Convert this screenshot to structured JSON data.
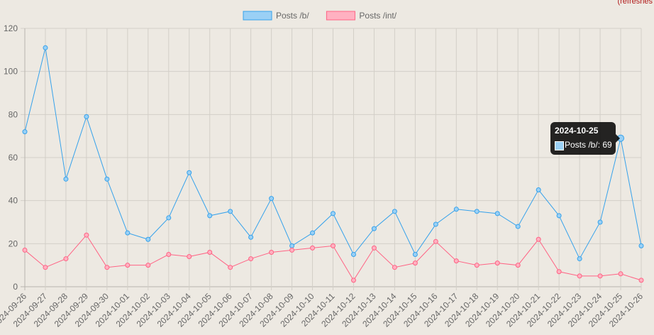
{
  "header": {
    "refresh_note": "(refreshes"
  },
  "chart_data": {
    "type": "line",
    "title": "",
    "xlabel": "",
    "ylabel": "",
    "ylim": [
      0,
      120
    ],
    "yticks": [
      0,
      20,
      40,
      60,
      80,
      100,
      120
    ],
    "grid": true,
    "legend_position": "top",
    "categories": [
      "2024-09-26",
      "2024-09-27",
      "2024-09-28",
      "2024-09-29",
      "2024-09-30",
      "2024-10-01",
      "2024-10-02",
      "2024-10-03",
      "2024-10-04",
      "2024-10-05",
      "2024-10-06",
      "2024-10-07",
      "2024-10-08",
      "2024-10-09",
      "2024-10-10",
      "2024-10-11",
      "2024-10-12",
      "2024-10-13",
      "2024-10-14",
      "2024-10-15",
      "2024-10-16",
      "2024-10-17",
      "2024-10-18",
      "2024-10-19",
      "2024-10-20",
      "2024-10-21",
      "2024-10-22",
      "2024-10-23",
      "2024-10-24",
      "2024-10-25",
      "2024-10-26"
    ],
    "series": [
      {
        "name": "Posts /b/",
        "color": "#36a2eb",
        "fill": "#9ad0f5",
        "values": [
          72,
          111,
          50,
          79,
          50,
          25,
          22,
          32,
          53,
          33,
          35,
          23,
          41,
          19,
          25,
          34,
          15,
          27,
          35,
          15,
          29,
          36,
          35,
          34,
          28,
          45,
          33,
          13,
          30,
          69,
          19
        ]
      },
      {
        "name": "Posts /int/",
        "color": "#ff6384",
        "fill": "#ffb1c1",
        "values": [
          17,
          9,
          13,
          24,
          9,
          10,
          10,
          15,
          14,
          16,
          9,
          13,
          16,
          17,
          18,
          19,
          3,
          18,
          9,
          11,
          21,
          12,
          10,
          11,
          10,
          22,
          7,
          5,
          5,
          6,
          3
        ]
      }
    ],
    "tooltip": {
      "title": "2024-10-25",
      "label": "Posts /b/: 69",
      "series_index": 0,
      "point_index": 29
    }
  }
}
